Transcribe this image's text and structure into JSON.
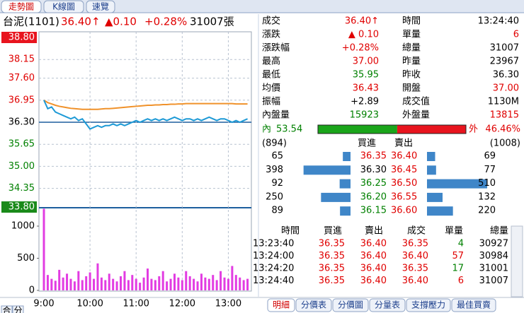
{
  "tabs": [
    "走勢圖",
    "K線圖",
    "速覽"
  ],
  "header": {
    "name": "台泥(1101)",
    "price": "36.40↑",
    "change": "▲0.10",
    "pct": "+0.28%",
    "volume": "31007張"
  },
  "chart_data": {
    "type": "line",
    "x": [
      0,
      5,
      10,
      15,
      20,
      25,
      30,
      35,
      40,
      45,
      50,
      55,
      60,
      65,
      70,
      75,
      80,
      85,
      90,
      95,
      100,
      105,
      110,
      115,
      120,
      125,
      130,
      135,
      140,
      145,
      150,
      155,
      160,
      165,
      170,
      175,
      180,
      185,
      190,
      195,
      200,
      205,
      210,
      215,
      220,
      225,
      230,
      235,
      240,
      245,
      250,
      255,
      260,
      265
    ],
    "xlim": [
      0,
      270
    ],
    "xticks": [
      {
        "value": 0,
        "label": "9:00"
      },
      {
        "value": 60,
        "label": "10:00"
      },
      {
        "value": 120,
        "label": "11:00"
      },
      {
        "value": 180,
        "label": "12:00"
      },
      {
        "value": 240,
        "label": "13:00"
      }
    ],
    "ylim": [
      33.8,
      38.8
    ],
    "yticks": [
      {
        "value": 38.8,
        "label": "38.80"
      },
      38.15,
      {
        "value": 37.6,
        "label": "37.60"
      },
      36.95,
      {
        "value": 36.3,
        "label": "36.30"
      },
      35.65,
      {
        "value": 35,
        "label": "35.00"
      },
      34.35,
      {
        "value": 33.8,
        "label": "33.80"
      }
    ],
    "reference": 36.3,
    "grid": true,
    "series": [
      {
        "color": "#1e9ad6",
        "values": [
          36.95,
          36.7,
          36.75,
          36.6,
          36.55,
          36.5,
          36.45,
          36.4,
          36.45,
          36.35,
          36.4,
          36.25,
          36.1,
          36.15,
          36.2,
          36.15,
          36.2,
          36.2,
          36.25,
          36.2,
          36.25,
          36.2,
          36.25,
          36.3,
          36.35,
          36.3,
          36.35,
          36.4,
          36.35,
          36.4,
          36.35,
          36.4,
          36.35,
          36.4,
          36.45,
          36.4,
          36.35,
          36.4,
          36.4,
          36.35,
          36.4,
          36.35,
          36.4,
          36.45,
          36.4,
          36.35,
          36.4,
          36.4,
          36.35,
          36.3,
          36.35,
          36.3,
          36.35,
          36.4
        ]
      },
      {
        "color": "#f0922b",
        "values": [
          36.95,
          36.88,
          36.84,
          36.8,
          36.77,
          36.75,
          36.73,
          36.71,
          36.7,
          36.69,
          36.68,
          36.68,
          36.68,
          36.68,
          36.68,
          36.69,
          36.7,
          36.7,
          36.71,
          36.72,
          36.73,
          36.74,
          36.75,
          36.76,
          36.77,
          36.78,
          36.79,
          36.8,
          36.8,
          36.81,
          36.81,
          36.82,
          36.82,
          36.83,
          36.83,
          36.84,
          36.84,
          36.85,
          36.85,
          36.85,
          36.85,
          36.85,
          36.85,
          36.85,
          36.85,
          36.85,
          36.85,
          36.85,
          36.85,
          36.85,
          36.84,
          36.84,
          36.84,
          36.84
        ]
      }
    ],
    "volume": {
      "color": "#e23ce2",
      "ylim": [
        0,
        1275
      ],
      "yticks": [
        0,
        500,
        1000
      ],
      "values": [
        1270,
        240,
        180,
        150,
        320,
        200,
        260,
        180,
        140,
        300,
        160,
        220,
        280,
        180,
        420,
        200,
        160,
        260,
        180,
        140,
        220,
        300,
        160,
        240,
        180,
        120,
        200,
        340,
        180,
        160,
        220,
        300,
        140,
        180,
        260,
        200,
        160,
        300,
        220,
        180,
        140,
        260,
        200,
        180,
        240,
        160,
        300,
        200,
        180,
        380,
        240,
        200,
        160,
        180
      ]
    }
  },
  "quote": [
    [
      {
        "label": "成交",
        "value": "36.40↑",
        "color": "#e00000"
      },
      {
        "label": "時間",
        "value": "13:24:40",
        "color": "#000000"
      }
    ],
    [
      {
        "label": "漲跌",
        "value": "▲ 0.10",
        "color": "#e00000"
      },
      {
        "label": "單量",
        "value": "6",
        "color": "#e00000"
      }
    ],
    [
      {
        "label": "漲跌幅",
        "value": "+0.28%",
        "color": "#e00000"
      },
      {
        "label": "總量",
        "value": "31007",
        "color": "#000000"
      }
    ],
    [
      {
        "label": "最高",
        "value": "37.00",
        "color": "#e00000"
      },
      {
        "label": "昨量",
        "value": "23967",
        "color": "#000000"
      }
    ],
    [
      {
        "label": "最低",
        "value": "35.95",
        "color": "#008000"
      },
      {
        "label": "昨收",
        "value": "36.30",
        "color": "#000000"
      }
    ],
    [
      {
        "label": "均價",
        "value": "36.43",
        "color": "#e00000"
      },
      {
        "label": "開盤",
        "value": "37.00",
        "color": "#e00000"
      }
    ],
    [
      {
        "label": "振幅",
        "value": "+2.89",
        "color": "#000000"
      },
      {
        "label": "成交值",
        "value": "1130M",
        "color": "#000000"
      }
    ],
    [
      {
        "label": "內盤量",
        "value": "15923",
        "color": "#008000"
      },
      {
        "label": "外盤量",
        "value": "13815",
        "color": "#e00000"
      }
    ]
  ],
  "ratio": {
    "labels": [
      "內",
      "外"
    ],
    "values": [
      53.54,
      46.46
    ],
    "value_labels": [
      "53.54",
      "46.46%"
    ],
    "colors": [
      "#1aa51a",
      "#e8141e"
    ]
  },
  "book": {
    "bid_total": "(894)",
    "bid_label": "買進",
    "ask_label": "賣出",
    "ask_total": "(1008)",
    "bar_color": "#3f86c8",
    "bids": [
      {
        "size": 65,
        "price": "36.35",
        "color": "#e00000"
      },
      {
        "size": 398,
        "price": "36.30",
        "color": "#000000"
      },
      {
        "size": 92,
        "price": "36.25",
        "color": "#008000"
      },
      {
        "size": 250,
        "price": "36.20",
        "color": "#008000"
      },
      {
        "size": 89,
        "price": "36.15",
        "color": "#008000"
      }
    ],
    "asks": [
      {
        "size": 69,
        "price": "36.40",
        "color": "#e00000"
      },
      {
        "size": 77,
        "price": "36.45",
        "color": "#e00000"
      },
      {
        "size": 510,
        "price": "36.50",
        "color": "#e00000"
      },
      {
        "size": 132,
        "price": "36.55",
        "color": "#e00000"
      },
      {
        "size": 220,
        "price": "36.60",
        "color": "#e00000"
      }
    ]
  },
  "trades": {
    "columns": [
      "時間",
      "買進",
      "賣出",
      "成交",
      "單量",
      "總量"
    ],
    "column_colors": [
      "#000000",
      "#e00000",
      "#e00000",
      "#e00000",
      null,
      "#000000"
    ],
    "size_colors": [
      "#008000",
      "#e00000",
      "#008000",
      "#e00000"
    ],
    "rows": [
      [
        "13:23:40",
        "36.35",
        "36.40",
        "36.35",
        "4",
        "30927"
      ],
      [
        "13:24:00",
        "36.35",
        "36.40",
        "36.40",
        "57",
        "30984"
      ],
      [
        "13:24:20",
        "36.35",
        "36.40",
        "36.35",
        "17",
        "31001"
      ],
      [
        "13:24:40",
        "36.35",
        "36.40",
        "36.40",
        "6",
        "31007"
      ]
    ]
  },
  "bottom_tabs": [
    "明細",
    "分價表",
    "分價圖",
    "分量表",
    "支撐壓力",
    "最佳買賣"
  ],
  "corner_buttons": [
    "合",
    "分"
  ]
}
